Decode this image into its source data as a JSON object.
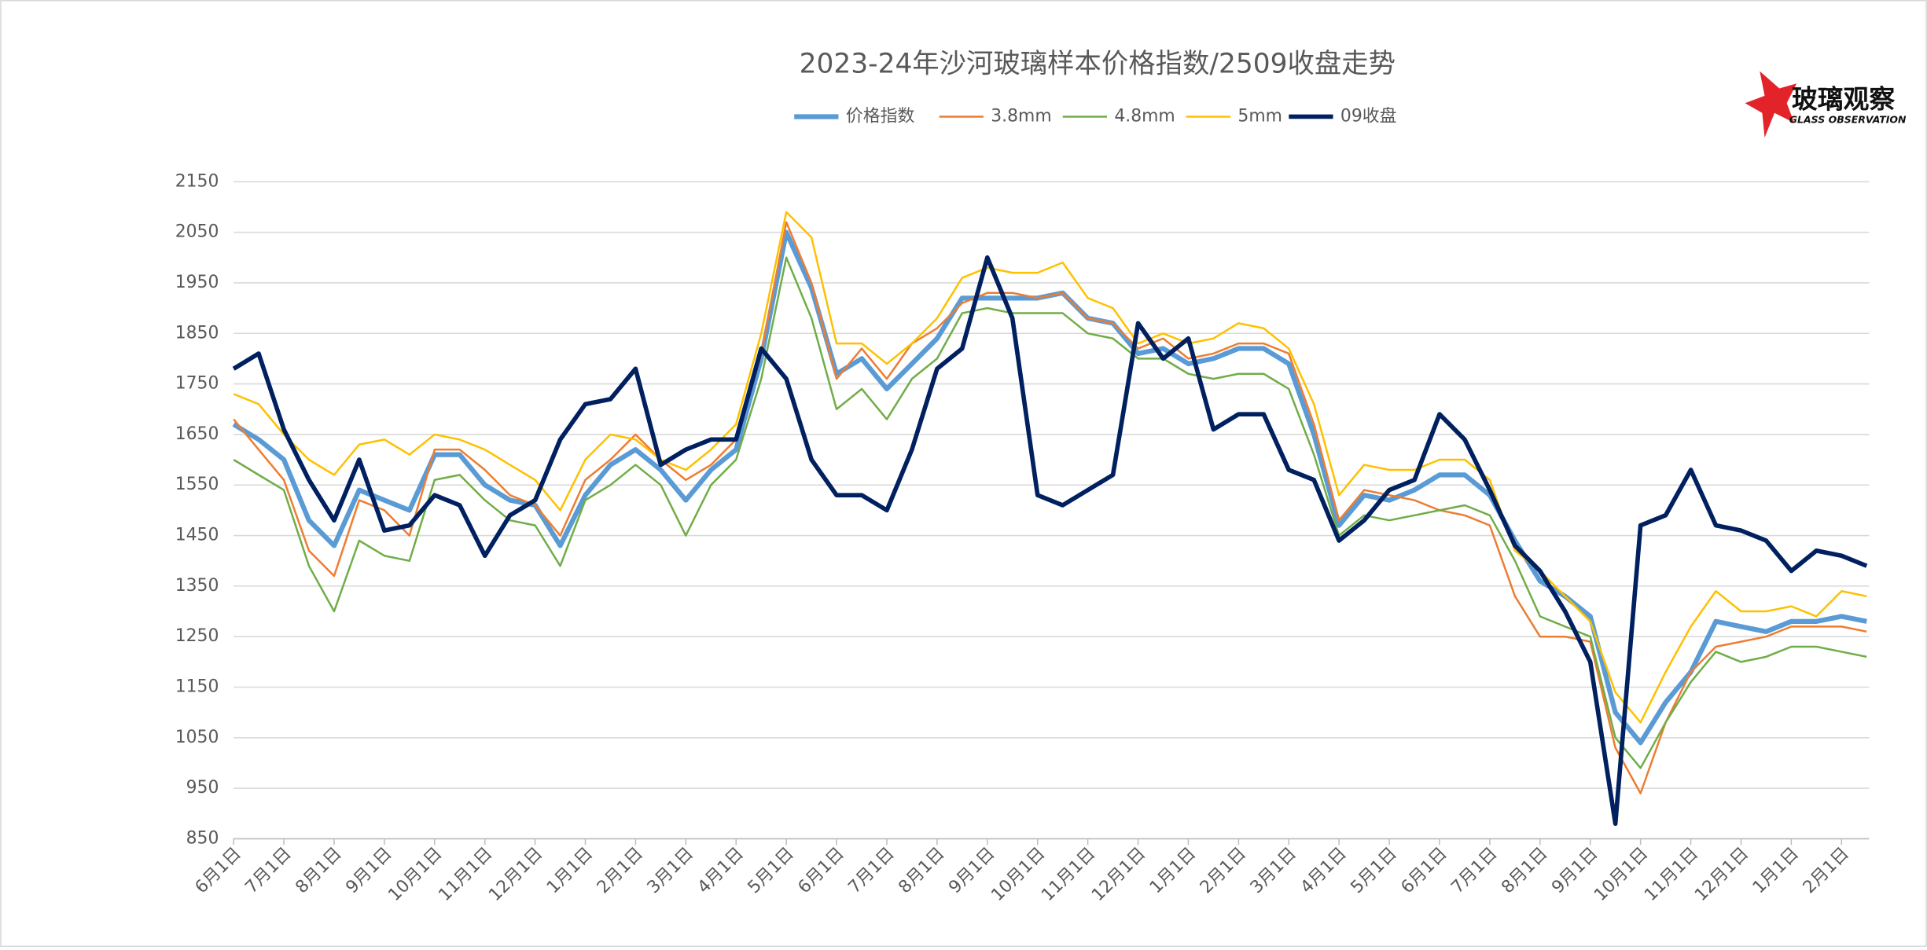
{
  "chart_data": {
    "type": "line",
    "title": "2023-24年沙河玻璃样本价格指数/2509收盘走势",
    "logo": {
      "title": "玻璃观察",
      "subtitle": "GLASS OBSERVATION"
    },
    "categories": [
      "6月1日",
      null,
      "7月1日",
      null,
      "8月1日",
      null,
      "9月1日",
      null,
      "10月1日",
      null,
      "11月1日",
      null,
      "12月1日",
      null,
      "1月1日",
      null,
      "2月1日",
      null,
      "3月1日",
      null,
      "4月1日",
      null,
      "5月1日",
      null,
      "6月1日",
      null,
      "7月1日",
      null,
      "8月1日",
      null,
      "9月1日",
      null,
      "10月1日",
      null,
      "11月1日",
      null,
      "12月1日",
      null,
      "1月1日",
      null,
      "2月1日",
      null,
      "3月1日",
      null,
      "4月1日",
      null,
      "5月1日",
      null,
      "6月1日",
      null,
      "7月1日",
      null,
      "8月1日",
      null,
      "9月1日",
      null,
      "10月1日",
      null,
      "11月1日",
      null,
      "12月1日",
      null,
      "1月1日",
      null,
      "2月1日",
      null
    ],
    "series": [
      {
        "name": "价格指数",
        "color": "#5b9bd5",
        "width": 4,
        "values": [
          1670,
          1640,
          1600,
          1480,
          1430,
          1540,
          1520,
          1500,
          1610,
          1610,
          1550,
          1520,
          1510,
          1430,
          1530,
          1590,
          1620,
          1580,
          1520,
          1580,
          1620,
          1800,
          2050,
          1940,
          1770,
          1800,
          1740,
          1790,
          1840,
          1920,
          1920,
          1920,
          1920,
          1930,
          1880,
          1870,
          1810,
          1820,
          1790,
          1800,
          1820,
          1820,
          1790,
          1650,
          1470,
          1530,
          1520,
          1540,
          1570,
          1570,
          1530,
          1440,
          1360,
          1330,
          1290,
          1100,
          1040,
          1120,
          1180,
          1280,
          1270,
          1260,
          1280,
          1280,
          1290,
          1280
        ]
      },
      {
        "name": "3.8mm",
        "color": "#ed7d31",
        "width": 1.6,
        "values": [
          1680,
          1620,
          1560,
          1420,
          1370,
          1520,
          1500,
          1450,
          1620,
          1620,
          1580,
          1530,
          1510,
          1450,
          1560,
          1600,
          1650,
          1600,
          1560,
          1590,
          1640,
          1810,
          2070,
          1950,
          1760,
          1820,
          1760,
          1830,
          1860,
          1910,
          1930,
          1930,
          1920,
          1930,
          1880,
          1870,
          1820,
          1840,
          1800,
          1810,
          1830,
          1830,
          1810,
          1670,
          1480,
          1540,
          1530,
          1520,
          1500,
          1490,
          1470,
          1330,
          1250,
          1250,
          1240,
          1030,
          940,
          1080,
          1180,
          1230,
          1240,
          1250,
          1270,
          1270,
          1270,
          1260
        ]
      },
      {
        "name": "4.8mm",
        "color": "#70ad47",
        "width": 1.6,
        "values": [
          1600,
          1570,
          1540,
          1390,
          1300,
          1440,
          1410,
          1400,
          1560,
          1570,
          1520,
          1480,
          1470,
          1390,
          1520,
          1550,
          1590,
          1550,
          1450,
          1550,
          1600,
          1760,
          2000,
          1880,
          1700,
          1740,
          1680,
          1760,
          1800,
          1890,
          1900,
          1890,
          1890,
          1890,
          1850,
          1840,
          1800,
          1800,
          1770,
          1760,
          1770,
          1770,
          1740,
          1610,
          1450,
          1490,
          1480,
          1490,
          1500,
          1510,
          1490,
          1400,
          1290,
          1270,
          1250,
          1050,
          990,
          1080,
          1160,
          1220,
          1200,
          1210,
          1230,
          1230,
          1220,
          1210
        ]
      },
      {
        "name": "5mm",
        "color": "#ffc000",
        "width": 1.6,
        "values": [
          1730,
          1710,
          1650,
          1600,
          1570,
          1630,
          1640,
          1610,
          1650,
          1640,
          1620,
          1590,
          1560,
          1500,
          1600,
          1650,
          1640,
          1600,
          1580,
          1620,
          1670,
          1850,
          2090,
          2040,
          1830,
          1830,
          1790,
          1830,
          1880,
          1960,
          1980,
          1970,
          1970,
          1990,
          1920,
          1900,
          1830,
          1850,
          1830,
          1840,
          1870,
          1860,
          1820,
          1710,
          1530,
          1590,
          1580,
          1580,
          1600,
          1600,
          1560,
          1420,
          1380,
          1330,
          1280,
          1140,
          1080,
          1180,
          1270,
          1340,
          1300,
          1300,
          1310,
          1290,
          1340,
          1330
        ]
      },
      {
        "name": "09收盘",
        "color": "#002060",
        "width": 3.6,
        "values": [
          1780,
          1810,
          1660,
          1560,
          1480,
          1600,
          1460,
          1470,
          1530,
          1510,
          1410,
          1490,
          1520,
          1640,
          1710,
          1720,
          1780,
          1590,
          1620,
          1640,
          1640,
          1820,
          1760,
          1600,
          1530,
          1530,
          1500,
          1620,
          1780,
          1820,
          2000,
          1880,
          1530,
          1510,
          1540,
          1570,
          1870,
          1800,
          1840,
          1660,
          1690,
          1690,
          1580,
          1560,
          1440,
          1480,
          1540,
          1560,
          1690,
          1640,
          1540,
          1430,
          1380,
          1300,
          1200,
          880,
          1470,
          1490,
          1580,
          1470,
          1460,
          1440,
          1380,
          1420,
          1410,
          1390
        ]
      }
    ],
    "ylim": [
      850,
      2150
    ],
    "yticks": [
      850,
      950,
      1050,
      1150,
      1250,
      1350,
      1450,
      1550,
      1650,
      1750,
      1850,
      1950,
      2050,
      2150
    ],
    "grid": true
  }
}
